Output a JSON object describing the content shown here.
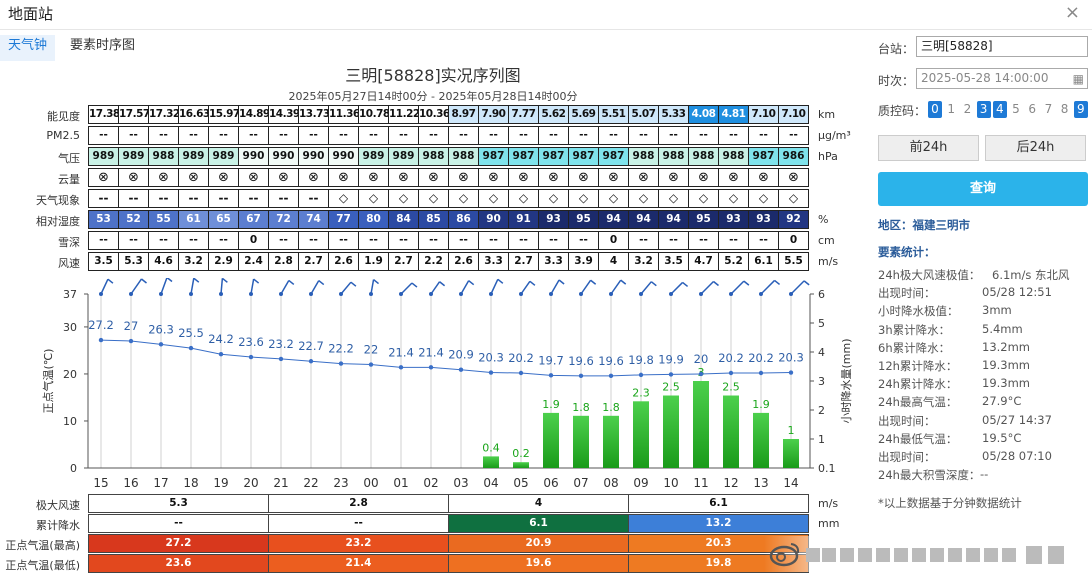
{
  "window": {
    "title": "地面站",
    "close": "×"
  },
  "tabs": [
    "天气钟",
    "要素时序图"
  ],
  "chart": {
    "title": "三明[58828]实况序列图",
    "subtitle": "2025年05月27日14时00分 - 2025年05月28日14时00分"
  },
  "table": {
    "rows": [
      {
        "label": "能见度",
        "unit": "km",
        "values": [
          "17.38",
          "17.57",
          "17.32",
          "16.63",
          "15.97",
          "14.89",
          "14.39",
          "13.73",
          "11.36",
          "10.78",
          "11.22",
          "10.36",
          "8.97",
          "7.90",
          "7.77",
          "5.62",
          "5.69",
          "5.51",
          "5.07",
          "5.33",
          "4.08",
          "4.81",
          "7.10",
          "7.10"
        ]
      },
      {
        "label": "PM2.5",
        "unit": "μg/m³",
        "values": [
          "--",
          "--",
          "--",
          "--",
          "--",
          "--",
          "--",
          "--",
          "--",
          "--",
          "--",
          "--",
          "--",
          "--",
          "--",
          "--",
          "--",
          "--",
          "--",
          "--",
          "--",
          "--",
          "--",
          "--"
        ]
      },
      {
        "label": "气压",
        "unit": "hPa",
        "values": [
          "989",
          "989",
          "988",
          "989",
          "989",
          "990",
          "990",
          "990",
          "990",
          "989",
          "989",
          "988",
          "988",
          "987",
          "987",
          "987",
          "987",
          "987",
          "988",
          "988",
          "988",
          "988",
          "987",
          "986"
        ]
      },
      {
        "label": "云量",
        "unit": "",
        "values": [
          "⊗",
          "⊗",
          "⊗",
          "⊗",
          "⊗",
          "⊗",
          "⊗",
          "⊗",
          "⊗",
          "⊗",
          "⊗",
          "⊗",
          "⊗",
          "⊗",
          "⊗",
          "⊗",
          "⊗",
          "⊗",
          "⊗",
          "⊗",
          "⊗",
          "⊗",
          "⊗",
          "⊗"
        ]
      },
      {
        "label": "天气现象",
        "unit": "",
        "values": [
          "--",
          "--",
          "--",
          "--",
          "--",
          "--",
          "--",
          "--",
          "◇",
          "◇",
          "◇",
          "◇",
          "◇",
          "◇",
          "◇",
          "◇",
          "◇",
          "◇",
          "◇",
          "◇",
          "◇",
          "◇",
          "◇",
          "◇"
        ]
      },
      {
        "label": "相对湿度",
        "unit": "%",
        "values": [
          "53",
          "52",
          "55",
          "61",
          "65",
          "67",
          "72",
          "74",
          "77",
          "80",
          "84",
          "85",
          "86",
          "90",
          "91",
          "93",
          "95",
          "94",
          "94",
          "94",
          "95",
          "93",
          "93",
          "92"
        ]
      },
      {
        "label": "雪深",
        "unit": "cm",
        "values": [
          "--",
          "--",
          "--",
          "--",
          "--",
          "0",
          "--",
          "--",
          "--",
          "--",
          "--",
          "--",
          "--",
          "--",
          "--",
          "--",
          "--",
          "0",
          "--",
          "--",
          "--",
          "--",
          "--",
          "0"
        ]
      },
      {
        "label": "风速",
        "unit": "m/s",
        "values": [
          "3.5",
          "5.3",
          "4.6",
          "3.2",
          "2.9",
          "2.4",
          "2.8",
          "2.7",
          "2.6",
          "1.9",
          "2.7",
          "2.2",
          "2.6",
          "3.3",
          "2.7",
          "3.3",
          "3.9",
          "4",
          "3.2",
          "3.5",
          "4.7",
          "5.2",
          "6.1",
          "5.5"
        ]
      }
    ]
  },
  "chart_data": {
    "type": "line",
    "x": [
      "15",
      "16",
      "17",
      "18",
      "19",
      "20",
      "21",
      "22",
      "23",
      "00",
      "01",
      "02",
      "03",
      "04",
      "05",
      "06",
      "07",
      "08",
      "09",
      "10",
      "11",
      "12",
      "13",
      "14"
    ],
    "xlabel": "",
    "ylabel": "正点气温(℃)",
    "ylim": [
      0,
      37
    ],
    "yticks": [
      0,
      10,
      20,
      30,
      37
    ],
    "y2label": "小时降水量(mm)",
    "y2ticks": [
      "0.1",
      "1",
      "2",
      "3",
      "4",
      "5",
      "6"
    ],
    "series": [
      {
        "type": "line",
        "values": [
          27.2,
          27,
          26.3,
          25.5,
          24.2,
          23.6,
          23.2,
          22.7,
          22.2,
          22,
          21.4,
          21.4,
          20.9,
          20.3,
          20.2,
          19.7,
          19.6,
          19.6,
          19.8,
          19.9,
          20,
          20.2,
          20.2,
          20.3
        ]
      },
      {
        "type": "bar",
        "values": [
          null,
          null,
          null,
          null,
          null,
          null,
          null,
          null,
          null,
          null,
          null,
          null,
          null,
          0.4,
          0.2,
          1.9,
          1.8,
          1.8,
          2.3,
          2.5,
          3,
          2.5,
          1.9,
          1
        ]
      }
    ],
    "colors": {
      "line": "#3a6fc7",
      "temp_text": "#2f5fa6",
      "bar_top": "#4cd04c",
      "bar_bottom": "#1a9b1a",
      "rain_text": "#1aa51a"
    }
  },
  "bottom": {
    "units": [
      "m/s",
      "mm"
    ],
    "rows": [
      {
        "label": "极大风速",
        "values": [
          "5.3",
          "2.8",
          "4",
          "6.1"
        ]
      },
      {
        "label": "累计降水",
        "values": [
          "--",
          "--",
          "6.1",
          "13.2"
        ]
      },
      {
        "label": "正点气温(最高)",
        "values": [
          "27.2",
          "23.2",
          "20.9",
          "20.3"
        ]
      },
      {
        "label": "正点气温(最低)",
        "values": [
          "23.6",
          "21.4",
          "19.6",
          "19.8"
        ]
      }
    ]
  },
  "sidebar": {
    "station_label": "台站：",
    "station_value": "三明[58828]",
    "time_label": "时次：",
    "time_value": "2025-05-28 14:00:00",
    "qc_label": "质控码：",
    "qc_codes": [
      "0",
      "1",
      "2",
      "3",
      "4",
      "5",
      "6",
      "7",
      "8",
      "9"
    ],
    "qc_active": [
      "0",
      "3",
      "4",
      "9"
    ],
    "prev_button": "前24h",
    "next_button": "后24h",
    "query_button": "查询",
    "region": "地区：福建三明市",
    "stats_title": "要素统计：",
    "stats": [
      [
        "24h极大风速极值：",
        "6.1m/s 东北风"
      ],
      [
        "出现时间：",
        "05/28 12:51"
      ],
      [
        "小时降水极值：",
        "3mm"
      ],
      [
        "3h累计降水：",
        "5.4mm"
      ],
      [
        "6h累计降水：",
        "13.2mm"
      ],
      [
        "12h累计降水：",
        "19.3mm"
      ],
      [
        "24h累计降水：",
        "19.3mm"
      ],
      [
        "24h最高气温：",
        "27.9°C"
      ],
      [
        "出现时间：",
        "05/27 14:37"
      ],
      [
        "24h最低气温：",
        "19.5°C"
      ],
      [
        "出现时间：",
        "05/28 07:10"
      ],
      [
        "24h最大积雪深度：",
        "--"
      ]
    ],
    "footnote": "*以上数据基于分钟数据统计"
  }
}
